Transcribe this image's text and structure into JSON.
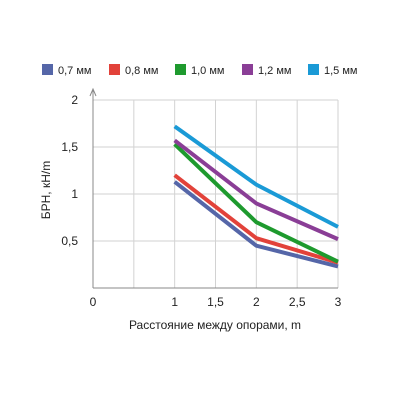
{
  "chart_data": {
    "type": "line",
    "xlabel": "Расстояние между опорами, m",
    "ylabel": "БРН, кН/m",
    "xlim": [
      0,
      3
    ],
    "ylim": [
      0,
      2
    ],
    "x_ticks": [
      {
        "value": 0,
        "label": "0"
      },
      {
        "value": 0.5,
        "label": ""
      },
      {
        "value": 1,
        "label": "1"
      },
      {
        "value": 1.5,
        "label": "1,5"
      },
      {
        "value": 2,
        "label": "2"
      },
      {
        "value": 2.5,
        "label": "2,5"
      },
      {
        "value": 3,
        "label": "3"
      }
    ],
    "y_ticks": [
      {
        "value": 0.5,
        "label": "0,5"
      },
      {
        "value": 1,
        "label": "1"
      },
      {
        "value": 1.5,
        "label": "1,5"
      },
      {
        "value": 2,
        "label": "2"
      }
    ],
    "grid": true,
    "legend_position": "top",
    "x": [
      1,
      2,
      3
    ],
    "series": [
      {
        "name": "0,7 мм",
        "color": "#5566a8",
        "values": [
          1.13,
          0.45,
          0.23
        ]
      },
      {
        "name": "0,8 мм",
        "color": "#e2423a",
        "values": [
          1.2,
          0.53,
          0.27
        ]
      },
      {
        "name": "1,0 мм",
        "color": "#1e9a2e",
        "values": [
          1.53,
          0.7,
          0.28
        ]
      },
      {
        "name": "1,2 мм",
        "color": "#8a3e96",
        "values": [
          1.57,
          0.9,
          0.52
        ]
      },
      {
        "name": "1,5 мм",
        "color": "#1a9ad6",
        "values": [
          1.72,
          1.1,
          0.65
        ]
      }
    ]
  }
}
